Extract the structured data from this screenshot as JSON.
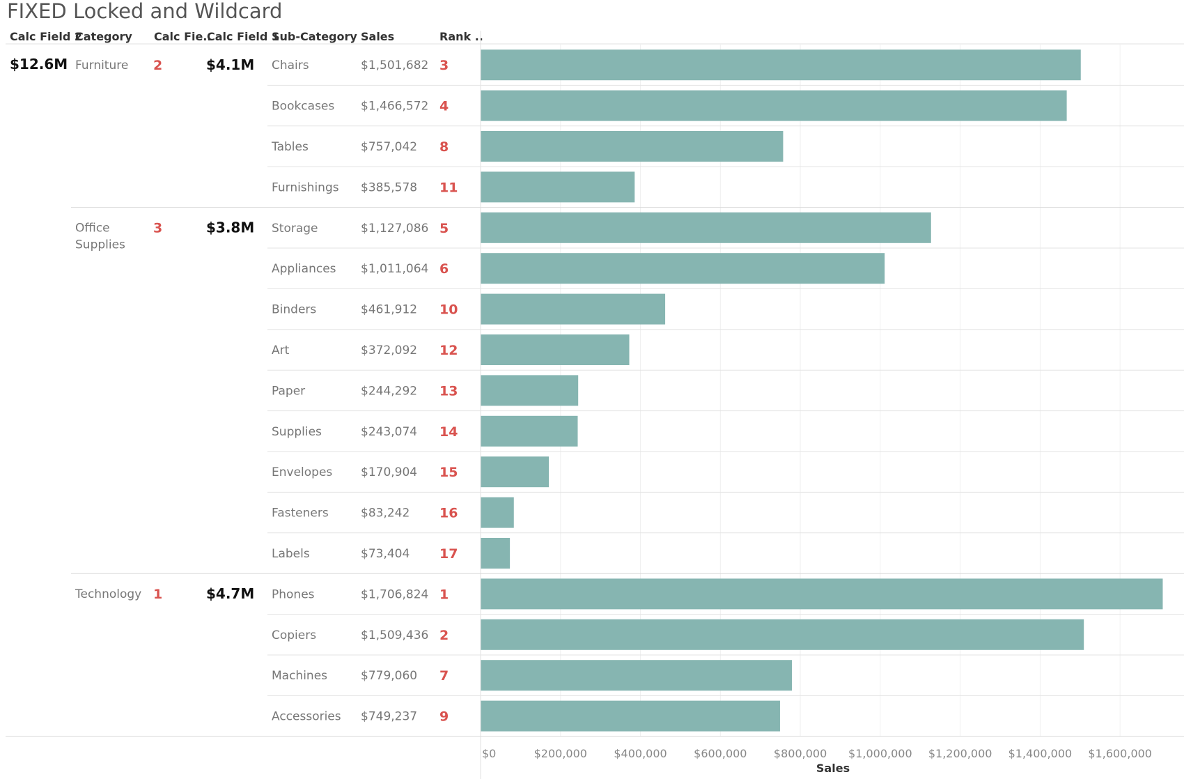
{
  "title": "FIXED Locked and Wildcard",
  "headers": {
    "calc2": "Calc Field 2",
    "category": "Category",
    "calc_fie": "Calc Fie..",
    "calc1": "Calc Field 1",
    "sub_category": "Sub-Category",
    "sales": "Sales",
    "rank": "Rank .."
  },
  "calc_field_2_total": "$12.6M",
  "bar_color": "#86b5b1",
  "rank_color": "#d9534f",
  "categories": [
    {
      "name_lines": [
        "Furniture"
      ],
      "rank": "2",
      "calc1": "$4.1M",
      "rows": [
        {
          "sub": "Chairs",
          "sales_label": "$1,501,682",
          "rank": "3"
        },
        {
          "sub": "Bookcases",
          "sales_label": "$1,466,572",
          "rank": "4"
        },
        {
          "sub": "Tables",
          "sales_label": "$757,042",
          "rank": "8"
        },
        {
          "sub": "Furnishings",
          "sales_label": "$385,578",
          "rank": "11"
        }
      ]
    },
    {
      "name_lines": [
        "Office",
        "Supplies"
      ],
      "rank": "3",
      "calc1": "$3.8M",
      "rows": [
        {
          "sub": "Storage",
          "sales_label": "$1,127,086",
          "rank": "5"
        },
        {
          "sub": "Appliances",
          "sales_label": "$1,011,064",
          "rank": "6"
        },
        {
          "sub": "Binders",
          "sales_label": "$461,912",
          "rank": "10"
        },
        {
          "sub": "Art",
          "sales_label": "$372,092",
          "rank": "12"
        },
        {
          "sub": "Paper",
          "sales_label": "$244,292",
          "rank": "13"
        },
        {
          "sub": "Supplies",
          "sales_label": "$243,074",
          "rank": "14"
        },
        {
          "sub": "Envelopes",
          "sales_label": "$170,904",
          "rank": "15"
        },
        {
          "sub": "Fasteners",
          "sales_label": "$83,242",
          "rank": "16"
        },
        {
          "sub": "Labels",
          "sales_label": "$73,404",
          "rank": "17"
        }
      ]
    },
    {
      "name_lines": [
        "Technology"
      ],
      "rank": "1",
      "calc1": "$4.7M",
      "rows": [
        {
          "sub": "Phones",
          "sales_label": "$1,706,824",
          "rank": "1"
        },
        {
          "sub": "Copiers",
          "sales_label": "$1,509,436",
          "rank": "2"
        },
        {
          "sub": "Machines",
          "sales_label": "$779,060",
          "rank": "7"
        },
        {
          "sub": "Accessories",
          "sales_label": "$749,237",
          "rank": "9"
        }
      ]
    }
  ],
  "chart_data": {
    "type": "bar",
    "orientation": "horizontal",
    "xlabel": "Sales",
    "xlim": [
      0,
      1760000
    ],
    "x_ticks": [
      0,
      200000,
      400000,
      600000,
      800000,
      1000000,
      1200000,
      1400000,
      1600000
    ],
    "x_tick_labels": [
      "$0",
      "$200,000",
      "$400,000",
      "$600,000",
      "$800,000",
      "$1,000,000",
      "$1,200,000",
      "$1,400,000",
      "$1,600,000"
    ],
    "grid": true,
    "categories": [
      "Chairs",
      "Bookcases",
      "Tables",
      "Furnishings",
      "Storage",
      "Appliances",
      "Binders",
      "Art",
      "Paper",
      "Supplies",
      "Envelopes",
      "Fasteners",
      "Labels",
      "Phones",
      "Copiers",
      "Machines",
      "Accessories"
    ],
    "values": [
      1501682,
      1466572,
      757042,
      385578,
      1127086,
      1011064,
      461912,
      372092,
      244292,
      243074,
      170904,
      83242,
      73404,
      1706824,
      1509436,
      779060,
      749237
    ]
  }
}
